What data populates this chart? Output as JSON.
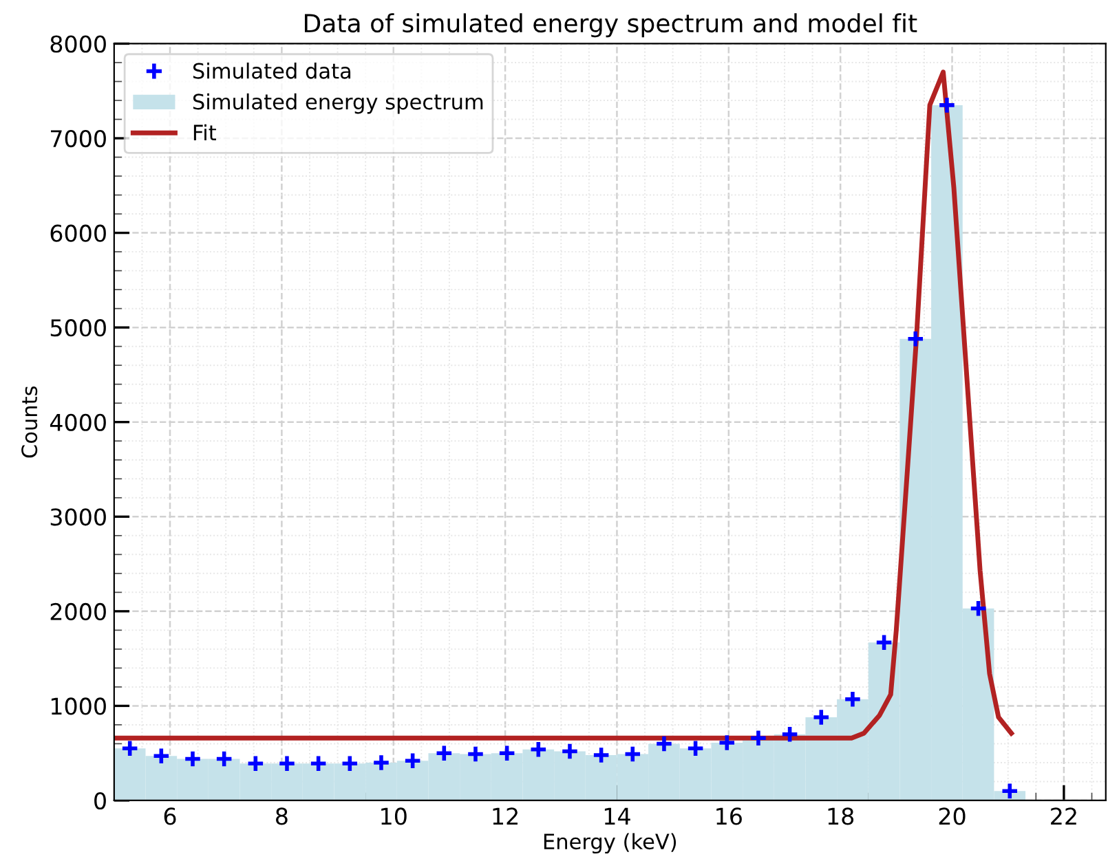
{
  "chart_data": {
    "type": "histogram",
    "title": "Data of simulated energy spectrum and model fit",
    "xlabel": "Energy (keV)",
    "ylabel": "Counts",
    "bins": [
      5,
      5.5625,
      6.125,
      6.6875,
      7.25,
      7.8125,
      8.375,
      8.9375,
      9.5,
      10.0625,
      10.625,
      11.1875,
      11.75,
      12.3125,
      12.875,
      13.4375,
      14,
      14.5625,
      15.125,
      15.6875,
      16.25,
      16.8125,
      17.375,
      17.9375,
      18.5,
      19.0625,
      19.625,
      20.1875,
      20.75,
      21.3125
    ],
    "series": [
      {
        "name": "Simulated data",
        "type": "scatter",
        "color": "#0000ff",
        "marker": "cross",
        "x": [
          5.28125,
          5.84375,
          6.40625,
          6.96875,
          7.53125,
          8.09375,
          8.65625,
          9.21875,
          9.78125,
          10.34375,
          10.90625,
          11.46875,
          12.03125,
          12.59375,
          13.15625,
          13.71875,
          14.28125,
          14.84375,
          15.40625,
          15.96875,
          16.53125,
          17.09375,
          17.65625,
          18.21875,
          18.78125,
          19.34375,
          19.90625,
          20.46875,
          21.03125
        ],
        "values": [
          550,
          470,
          440,
          440,
          390,
          390,
          390,
          390,
          400,
          420,
          500,
          490,
          500,
          540,
          520,
          480,
          490,
          600,
          550,
          610,
          660,
          700,
          880,
          1070,
          1670,
          4880,
          7350,
          2030,
          100
        ]
      },
      {
        "name": "Simulated energy spectrum",
        "color": "#c5e2ea",
        "values": [
          550,
          470,
          440,
          440,
          390,
          390,
          390,
          390,
          400,
          420,
          500,
          490,
          500,
          540,
          520,
          480,
          490,
          600,
          550,
          610,
          660,
          700,
          880,
          1070,
          1670,
          4880,
          7350,
          2030,
          100
        ]
      },
      {
        "name": "Fit",
        "type": "line",
        "color": "#b22222",
        "x": [
          5.0,
          18.2,
          18.42,
          18.7,
          18.9,
          19.0,
          19.2,
          19.36,
          19.6,
          19.84,
          20.03,
          20.5,
          20.67,
          20.83,
          21.06
        ],
        "values": [
          660,
          660,
          710,
          900,
          1120,
          1800,
          3500,
          4880,
          7350,
          7700,
          6480,
          2430,
          1340,
          880,
          710
        ]
      }
    ],
    "xlim": [
      5,
      22.75
    ],
    "xticks": [
      6,
      8,
      10,
      12,
      14,
      16,
      18,
      20,
      22
    ],
    "ylim": [
      0,
      8000
    ],
    "yticks": [
      0,
      1000,
      2000,
      3000,
      4000,
      5000,
      6000,
      7000,
      8000
    ],
    "grid": true,
    "legend": "top left"
  }
}
